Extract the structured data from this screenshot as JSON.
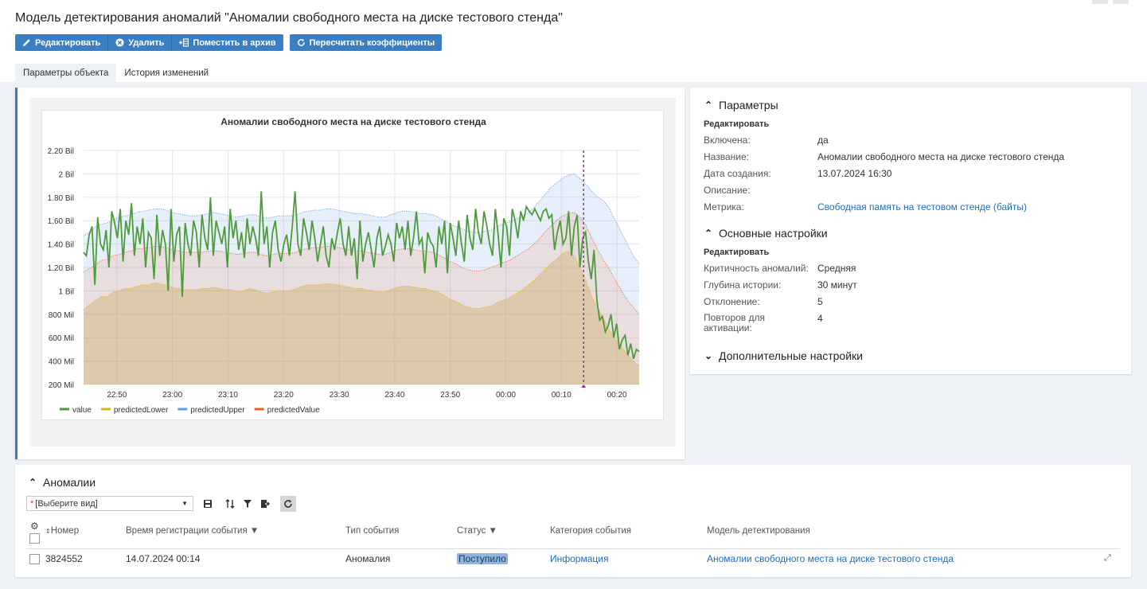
{
  "page": {
    "title": "Модель детектирования аномалий \"Аномалии свободного места на диске тестового стенда\""
  },
  "toolbar": {
    "edit": "Редактировать",
    "delete": "Удалить",
    "archive": "Поместить в архив",
    "recalc": "Пересчитать коэффициенты"
  },
  "tabs": [
    {
      "label": "Параметры объекта",
      "active": true
    },
    {
      "label": "История изменений",
      "active": false
    }
  ],
  "params": {
    "title": "Параметры",
    "edit_label": "Редактировать",
    "rows": [
      {
        "k": "Включена:",
        "v": "да"
      },
      {
        "k": "Название:",
        "v": "Аномалии свободного места на диске тестового стенда"
      },
      {
        "k": "Дата создания:",
        "v": "13.07.2024 16:30"
      },
      {
        "k": "Описание:",
        "v": ""
      },
      {
        "k": "Метрика:",
        "v": "Свободная память на тестовом стенде (байты)"
      }
    ]
  },
  "main_settings": {
    "title": "Основные настройки",
    "edit_label": "Редактировать",
    "rows": [
      {
        "k": "Критичность аномалий:",
        "v": "Средняя"
      },
      {
        "k": "Глубина истории:",
        "v": "30 минут"
      },
      {
        "k": "Отклонение:",
        "v": "5"
      },
      {
        "k": "Повторов для активации:",
        "v": "4"
      }
    ]
  },
  "extra_settings": {
    "title": "Дополнительные настройки"
  },
  "anomalies": {
    "title": "Аномалии",
    "view_placeholder": "[Выберите вид]",
    "columns": [
      "Номер",
      "Время регистрации события",
      "Тип события",
      "Статус",
      "Категория события",
      "Модель детектирования"
    ],
    "rows": [
      {
        "number": "3824552",
        "time": "14.07.2024 00:14",
        "type": "Аномалия",
        "status": "Поступило",
        "category": "Информация",
        "model": "Аномалии свободного места на диске тестового стенда"
      }
    ]
  },
  "colors": {
    "accent": "#3a7ec3",
    "value": "#4f9a3a",
    "predictedLower": "#e0b400",
    "predictedUpper": "#5b9be0",
    "predictedValue": "#f05d23",
    "marker": "#9c27b0"
  },
  "chart_data": {
    "type": "line",
    "title": "Аномалии свободного места на диске тестового стенда",
    "x_ticks": [
      "22:50",
      "23:00",
      "23:10",
      "23:20",
      "23:30",
      "23:40",
      "23:50",
      "00:00",
      "00:10",
      "00:20"
    ],
    "y_ticks": [
      "200 Mil",
      "400 Mil",
      "600 Mil",
      "800 Mil",
      "1 Bil",
      "1.20 Bil",
      "1.40 Bil",
      "1.60 Bil",
      "1.80 Bil",
      "2 Bil",
      "2.20 Bil"
    ],
    "ylim": [
      200000000,
      2200000000
    ],
    "x_range": [
      "22:44",
      "00:24"
    ],
    "marker_time": "00:14",
    "series": [
      {
        "name": "value",
        "values": [
          1.33,
          1.3,
          1.48,
          1.55,
          1.05,
          1.63,
          1.4,
          1.35,
          1.52,
          1.2,
          1.68,
          1.58,
          1.45,
          1.7,
          1.25,
          1.6,
          1.48,
          1.75,
          1.3,
          1.55,
          1.4,
          1.62,
          1.2,
          1.5,
          1.45,
          1.1,
          1.65,
          1.3,
          1.52,
          1.4,
          1.0,
          1.7,
          1.25,
          1.48,
          1.55,
          0.95,
          1.58,
          1.4,
          1.3,
          1.6,
          1.5,
          1.2,
          1.65,
          1.45,
          1.35,
          1.8,
          1.3,
          1.6,
          1.5,
          1.4,
          1.55,
          1.2,
          1.7,
          1.45,
          1.6,
          1.35,
          1.5,
          1.28,
          1.62,
          1.4,
          1.55,
          1.45,
          1.3,
          1.85,
          1.4,
          1.55,
          1.2,
          1.5,
          1.6,
          1.35,
          1.25,
          1.4,
          1.48,
          1.3,
          1.55,
          1.85,
          1.4,
          1.3,
          1.62,
          1.5,
          1.35,
          1.6,
          1.45,
          1.25,
          1.4,
          1.55,
          1.3,
          1.2,
          1.45,
          1.35,
          1.5,
          1.62,
          1.4,
          1.3,
          1.55,
          1.3,
          1.45,
          1.1,
          1.6,
          1.25,
          1.4,
          1.5,
          1.35,
          1.2,
          1.45,
          1.55,
          1.3,
          1.38,
          1.48,
          1.4,
          1.25,
          1.58,
          1.45,
          1.55,
          1.35,
          1.6,
          1.3,
          1.45,
          1.68,
          1.4,
          1.45,
          1.15,
          1.5,
          1.42,
          1.38,
          1.2,
          1.55,
          1.4,
          1.6,
          1.15,
          1.58,
          1.45,
          1.3,
          1.6,
          1.4,
          1.25,
          1.65,
          1.45,
          1.35,
          1.7,
          1.5,
          1.4,
          1.68,
          1.55,
          1.4,
          1.3,
          1.7,
          1.48,
          1.2,
          1.62,
          1.55,
          1.3,
          1.7,
          1.6,
          1.45,
          1.68,
          1.6,
          1.72,
          1.68,
          1.65,
          1.7,
          1.65,
          1.6,
          1.68,
          1.7,
          1.62,
          1.65,
          1.35,
          1.5,
          1.6,
          1.4,
          1.45,
          1.68,
          1.3,
          1.55,
          1.65,
          1.2,
          1.45,
          1.5,
          1.25,
          1.1,
          1.35,
          0.92,
          0.75,
          0.78,
          0.65,
          0.7,
          0.8,
          0.6,
          0.72,
          0.5,
          0.58,
          0.62,
          0.45,
          0.55,
          0.42,
          0.5,
          0.48
        ]
      },
      {
        "name": "predictedLower",
        "values": [
          0.84,
          0.88,
          0.92,
          0.95,
          0.95,
          0.99,
          1.0,
          1.02,
          1.02,
          1.04,
          1.05,
          1.05,
          1.07,
          1.06,
          1.05,
          1.03,
          1.02,
          1.01,
          1.01,
          1.01,
          1.02,
          1.02,
          1.03,
          1.02,
          1.01,
          1.01,
          0.99,
          1.0,
          1.02,
          1.01,
          0.99,
          0.98,
          0.99,
          1.0,
          1.0,
          1.0,
          1.02,
          1.04,
          1.05,
          1.05,
          1.05,
          1.06,
          1.06,
          1.05,
          1.04,
          1.03,
          1.02,
          1.02,
          1.01,
          1.0,
          0.99,
          0.99,
          1.01,
          1.03,
          1.04,
          1.04,
          1.03,
          1.02,
          1.02,
          1.0,
          0.99,
          0.96,
          0.93,
          0.91,
          0.88,
          0.86,
          0.85,
          0.85,
          0.86,
          0.87,
          0.9,
          0.92,
          0.94,
          0.97,
          1.0,
          1.04,
          1.08,
          1.13,
          1.18,
          1.23,
          1.27,
          1.32,
          1.34,
          1.3,
          1.2,
          1.08,
          0.95,
          0.85,
          0.76,
          0.66,
          0.58,
          0.52,
          0.46,
          0.4,
          0.36
        ]
      },
      {
        "name": "predictedUpper",
        "values": [
          1.47,
          1.5,
          1.55,
          1.57,
          1.58,
          1.61,
          1.63,
          1.64,
          1.65,
          1.67,
          1.68,
          1.69,
          1.7,
          1.7,
          1.69,
          1.67,
          1.66,
          1.65,
          1.64,
          1.64,
          1.65,
          1.66,
          1.67,
          1.66,
          1.65,
          1.64,
          1.63,
          1.64,
          1.65,
          1.65,
          1.63,
          1.62,
          1.63,
          1.64,
          1.64,
          1.64,
          1.65,
          1.67,
          1.68,
          1.69,
          1.69,
          1.7,
          1.7,
          1.69,
          1.68,
          1.67,
          1.66,
          1.66,
          1.65,
          1.64,
          1.63,
          1.63,
          1.65,
          1.67,
          1.68,
          1.68,
          1.67,
          1.66,
          1.66,
          1.65,
          1.63,
          1.6,
          1.57,
          1.55,
          1.53,
          1.51,
          1.5,
          1.5,
          1.51,
          1.52,
          1.55,
          1.57,
          1.59,
          1.61,
          1.63,
          1.66,
          1.7,
          1.76,
          1.82,
          1.88,
          1.92,
          1.96,
          1.99,
          2.0,
          1.96,
          1.91,
          1.85,
          1.8,
          1.77,
          1.7,
          1.6,
          1.5,
          1.4,
          1.3,
          1.23
        ]
      },
      {
        "name": "predictedValue",
        "values": [
          1.16,
          1.19,
          1.22,
          1.26,
          1.27,
          1.3,
          1.31,
          1.33,
          1.34,
          1.36,
          1.36,
          1.37,
          1.38,
          1.38,
          1.37,
          1.35,
          1.34,
          1.33,
          1.33,
          1.33,
          1.33,
          1.34,
          1.34,
          1.34,
          1.33,
          1.32,
          1.31,
          1.32,
          1.33,
          1.33,
          1.31,
          1.3,
          1.31,
          1.32,
          1.32,
          1.32,
          1.33,
          1.35,
          1.36,
          1.37,
          1.37,
          1.38,
          1.38,
          1.37,
          1.36,
          1.35,
          1.34,
          1.34,
          1.33,
          1.32,
          1.31,
          1.31,
          1.33,
          1.35,
          1.36,
          1.36,
          1.35,
          1.34,
          1.34,
          1.33,
          1.31,
          1.28,
          1.25,
          1.23,
          1.2,
          1.18,
          1.17,
          1.17,
          1.18,
          1.2,
          1.22,
          1.24,
          1.26,
          1.29,
          1.32,
          1.35,
          1.39,
          1.44,
          1.5,
          1.55,
          1.6,
          1.64,
          1.66,
          1.67,
          1.63,
          1.56,
          1.45,
          1.35,
          1.26,
          1.18,
          1.09,
          1.0,
          0.92,
          0.86,
          0.8
        ]
      }
    ],
    "unit": "Bil"
  }
}
